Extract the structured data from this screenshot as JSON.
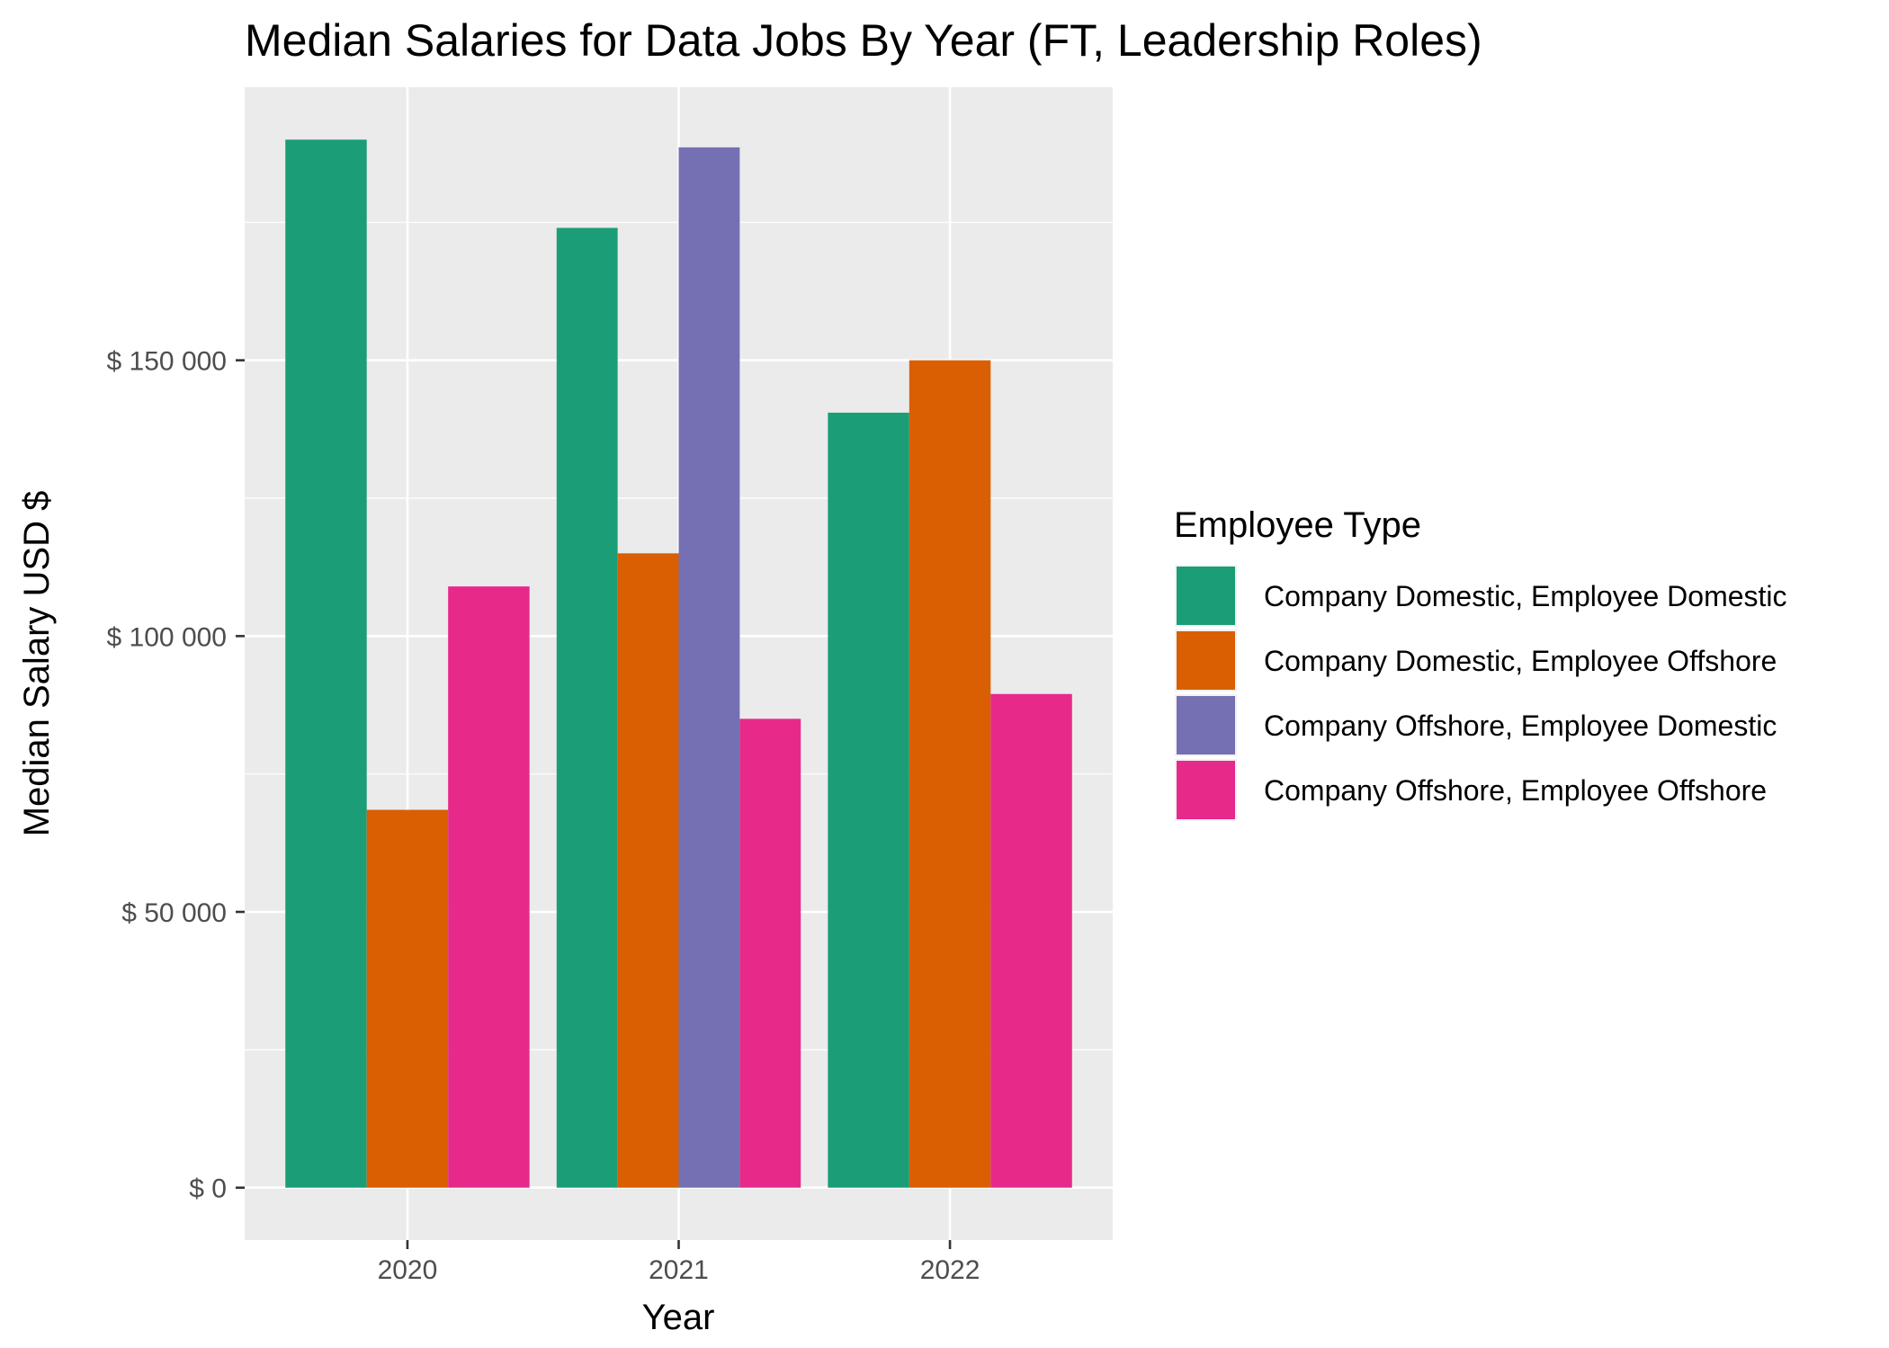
{
  "chart_data": {
    "type": "bar",
    "title": "Median Salaries for Data Jobs By Year (FT, Leadership Roles)",
    "xlabel": "Year",
    "ylabel": "Median Salary USD $",
    "categories": [
      "2020",
      "2021",
      "2022"
    ],
    "ylim": [
      -9500,
      199500
    ],
    "yticks": [
      0,
      50000,
      100000,
      150000
    ],
    "ytick_labels": [
      "$ 0",
      "$ 50 000",
      "$ 100 000",
      "$ 150 000"
    ],
    "grid": true,
    "legend": {
      "title": "Employee Type",
      "position": "right"
    },
    "series": [
      {
        "name": "Company Domestic, Employee Domestic",
        "color": "#1B9E77",
        "values": [
          190000,
          174000,
          140500
        ]
      },
      {
        "name": "Company Domestic, Employee Offshore",
        "color": "#D95F02",
        "values": [
          68500,
          115000,
          150000
        ]
      },
      {
        "name": "Company Offshore, Employee Domestic",
        "color": "#7570B3",
        "values": [
          null,
          188600,
          null
        ]
      },
      {
        "name": "Company Offshore, Employee Offshore",
        "color": "#E7298A",
        "values": [
          109000,
          85000,
          89500
        ]
      }
    ]
  }
}
